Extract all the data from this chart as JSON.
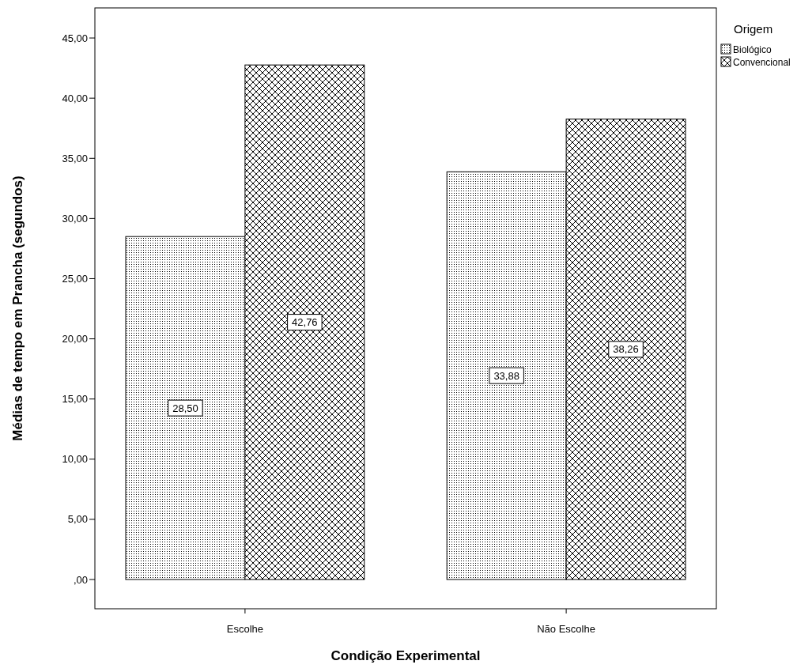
{
  "chart_data": {
    "type": "bar",
    "xlabel": "Condição Experimental",
    "ylabel": "Médias de tempo em Prancha (segundos)",
    "legend_title": "Origem",
    "legend": "top right",
    "categories": [
      "Escolhe",
      "Não Escolhe"
    ],
    "series": [
      {
        "name": "Biológico",
        "color": "#000000",
        "values": [
          28.5,
          33.88
        ],
        "value_labels": [
          "28,50",
          "33,88"
        ]
      },
      {
        "name": "Convencional",
        "color": "#000000",
        "values": [
          42.76,
          38.26
        ],
        "value_labels": [
          "42,76",
          "38,26"
        ]
      }
    ],
    "ylim": [
      -2.43,
      47.5
    ],
    "yticks": [
      {
        "value": 0,
        "label": ",00"
      },
      {
        "value": 5,
        "label": "5,00"
      },
      {
        "value": 10,
        "label": "10,00"
      },
      {
        "value": 15,
        "label": "15,00"
      },
      {
        "value": 20,
        "label": "20,00"
      },
      {
        "value": 25,
        "label": "25,00"
      },
      {
        "value": 30,
        "label": "30,00"
      },
      {
        "value": 35,
        "label": "35,00"
      },
      {
        "value": 40,
        "label": "40,00"
      },
      {
        "value": 45,
        "label": "45,00"
      }
    ]
  }
}
